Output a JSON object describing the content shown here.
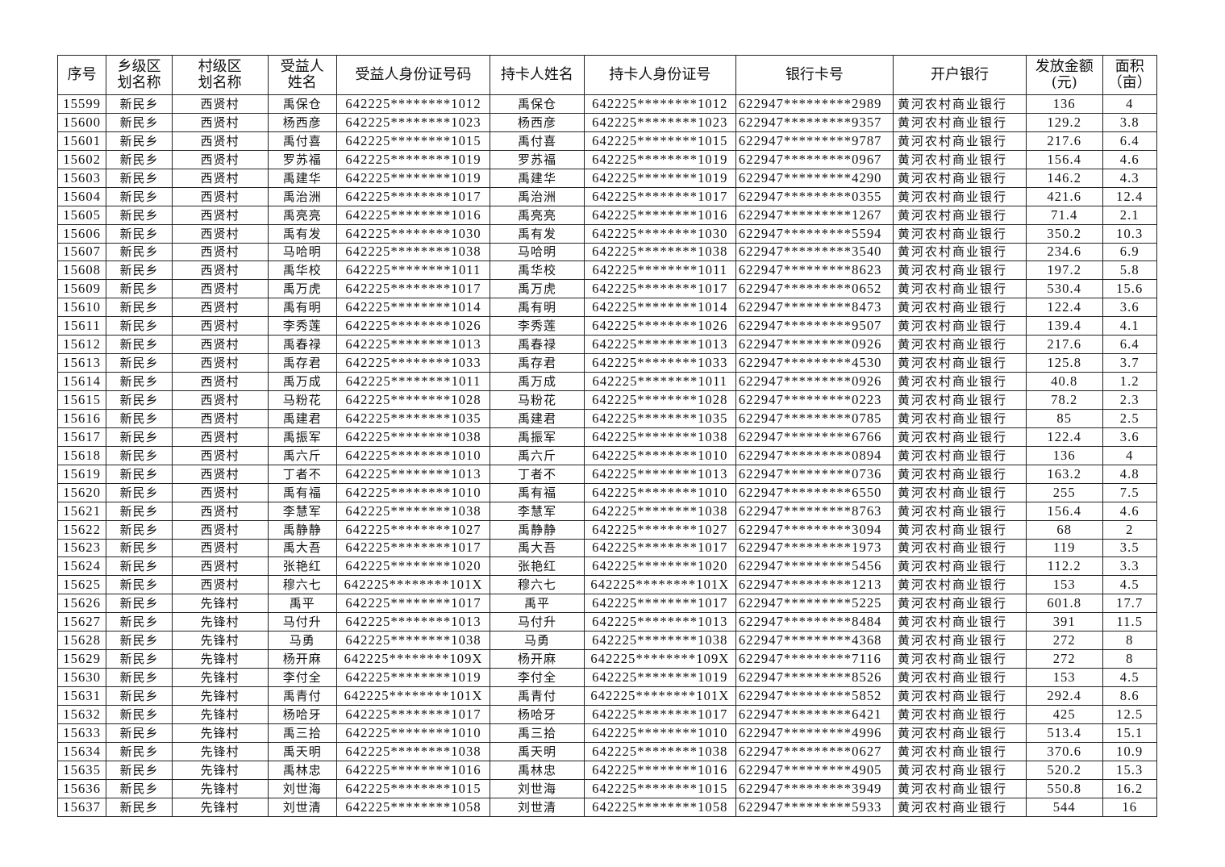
{
  "headers": [
    "序号",
    "乡级区\n划名称",
    "村级区\n划名称",
    "受益人\n姓名",
    "受益人身份证号码",
    "持卡人姓名",
    "持卡人身份证号",
    "银行卡号",
    "开户银行",
    "发放金额\n(元)",
    "面积\n（亩）"
  ],
  "rows": [
    [
      "15599",
      "新民乡",
      "西贤村",
      "禹保仓",
      "642225********1012",
      "禹保仓",
      "642225********1012",
      "622947*********2989",
      "黄河农村商业银行",
      "136",
      "4"
    ],
    [
      "15600",
      "新民乡",
      "西贤村",
      "杨西彦",
      "642225********1023",
      "杨西彦",
      "642225********1023",
      "622947*********9357",
      "黄河农村商业银行",
      "129.2",
      "3.8"
    ],
    [
      "15601",
      "新民乡",
      "西贤村",
      "禹付喜",
      "642225********1015",
      "禹付喜",
      "642225********1015",
      "622947*********9787",
      "黄河农村商业银行",
      "217.6",
      "6.4"
    ],
    [
      "15602",
      "新民乡",
      "西贤村",
      "罗苏福",
      "642225********1019",
      "罗苏福",
      "642225********1019",
      "622947*********0967",
      "黄河农村商业银行",
      "156.4",
      "4.6"
    ],
    [
      "15603",
      "新民乡",
      "西贤村",
      "禹建华",
      "642225********1019",
      "禹建华",
      "642225********1019",
      "622947*********4290",
      "黄河农村商业银行",
      "146.2",
      "4.3"
    ],
    [
      "15604",
      "新民乡",
      "西贤村",
      "禹治洲",
      "642225********1017",
      "禹治洲",
      "642225********1017",
      "622947*********0355",
      "黄河农村商业银行",
      "421.6",
      "12.4"
    ],
    [
      "15605",
      "新民乡",
      "西贤村",
      "禹亮亮",
      "642225********1016",
      "禹亮亮",
      "642225********1016",
      "622947*********1267",
      "黄河农村商业银行",
      "71.4",
      "2.1"
    ],
    [
      "15606",
      "新民乡",
      "西贤村",
      "禹有发",
      "642225********1030",
      "禹有发",
      "642225********1030",
      "622947*********5594",
      "黄河农村商业银行",
      "350.2",
      "10.3"
    ],
    [
      "15607",
      "新民乡",
      "西贤村",
      "马哈明",
      "642225********1038",
      "马哈明",
      "642225********1038",
      "622947*********3540",
      "黄河农村商业银行",
      "234.6",
      "6.9"
    ],
    [
      "15608",
      "新民乡",
      "西贤村",
      "禹华校",
      "642225********1011",
      "禹华校",
      "642225********1011",
      "622947*********8623",
      "黄河农村商业银行",
      "197.2",
      "5.8"
    ],
    [
      "15609",
      "新民乡",
      "西贤村",
      "禹万虎",
      "642225********1017",
      "禹万虎",
      "642225********1017",
      "622947*********0652",
      "黄河农村商业银行",
      "530.4",
      "15.6"
    ],
    [
      "15610",
      "新民乡",
      "西贤村",
      "禹有明",
      "642225********1014",
      "禹有明",
      "642225********1014",
      "622947*********8473",
      "黄河农村商业银行",
      "122.4",
      "3.6"
    ],
    [
      "15611",
      "新民乡",
      "西贤村",
      "李秀莲",
      "642225********1026",
      "李秀莲",
      "642225********1026",
      "622947*********9507",
      "黄河农村商业银行",
      "139.4",
      "4.1"
    ],
    [
      "15612",
      "新民乡",
      "西贤村",
      "禹春禄",
      "642225********1013",
      "禹春禄",
      "642225********1013",
      "622947*********0926",
      "黄河农村商业银行",
      "217.6",
      "6.4"
    ],
    [
      "15613",
      "新民乡",
      "西贤村",
      "禹存君",
      "642225********1033",
      "禹存君",
      "642225********1033",
      "622947*********4530",
      "黄河农村商业银行",
      "125.8",
      "3.7"
    ],
    [
      "15614",
      "新民乡",
      "西贤村",
      "禹万成",
      "642225********1011",
      "禹万成",
      "642225********1011",
      "622947*********0926",
      "黄河农村商业银行",
      "40.8",
      "1.2"
    ],
    [
      "15615",
      "新民乡",
      "西贤村",
      "马粉花",
      "642225********1028",
      "马粉花",
      "642225********1028",
      "622947*********0223",
      "黄河农村商业银行",
      "78.2",
      "2.3"
    ],
    [
      "15616",
      "新民乡",
      "西贤村",
      "禹建君",
      "642225********1035",
      "禹建君",
      "642225********1035",
      "622947*********0785",
      "黄河农村商业银行",
      "85",
      "2.5"
    ],
    [
      "15617",
      "新民乡",
      "西贤村",
      "禹振军",
      "642225********1038",
      "禹振军",
      "642225********1038",
      "622947*********6766",
      "黄河农村商业银行",
      "122.4",
      "3.6"
    ],
    [
      "15618",
      "新民乡",
      "西贤村",
      "禹六斤",
      "642225********1010",
      "禹六斤",
      "642225********1010",
      "622947*********0894",
      "黄河农村商业银行",
      "136",
      "4"
    ],
    [
      "15619",
      "新民乡",
      "西贤村",
      "丁者不",
      "642225********1013",
      "丁者不",
      "642225********1013",
      "622947*********0736",
      "黄河农村商业银行",
      "163.2",
      "4.8"
    ],
    [
      "15620",
      "新民乡",
      "西贤村",
      "禹有福",
      "642225********1010",
      "禹有福",
      "642225********1010",
      "622947*********6550",
      "黄河农村商业银行",
      "255",
      "7.5"
    ],
    [
      "15621",
      "新民乡",
      "西贤村",
      "李慧军",
      "642225********1038",
      "李慧军",
      "642225********1038",
      "622947*********8763",
      "黄河农村商业银行",
      "156.4",
      "4.6"
    ],
    [
      "15622",
      "新民乡",
      "西贤村",
      "禹静静",
      "642225********1027",
      "禹静静",
      "642225********1027",
      "622947*********3094",
      "黄河农村商业银行",
      "68",
      "2"
    ],
    [
      "15623",
      "新民乡",
      "西贤村",
      "禹大吾",
      "642225********1017",
      "禹大吾",
      "642225********1017",
      "622947*********1973",
      "黄河农村商业银行",
      "119",
      "3.5"
    ],
    [
      "15624",
      "新民乡",
      "西贤村",
      "张艳红",
      "642225********1020",
      "张艳红",
      "642225********1020",
      "622947*********5456",
      "黄河农村商业银行",
      "112.2",
      "3.3"
    ],
    [
      "15625",
      "新民乡",
      "西贤村",
      "穆六七",
      "642225********101X",
      "穆六七",
      "642225********101X",
      "622947*********1213",
      "黄河农村商业银行",
      "153",
      "4.5"
    ],
    [
      "15626",
      "新民乡",
      "先锋村",
      "禹平",
      "642225********1017",
      "禹平",
      "642225********1017",
      "622947*********5225",
      "黄河农村商业银行",
      "601.8",
      "17.7"
    ],
    [
      "15627",
      "新民乡",
      "先锋村",
      "马付升",
      "642225********1013",
      "马付升",
      "642225********1013",
      "622947*********8484",
      "黄河农村商业银行",
      "391",
      "11.5"
    ],
    [
      "15628",
      "新民乡",
      "先锋村",
      "马勇",
      "642225********1038",
      "马勇",
      "642225********1038",
      "622947*********4368",
      "黄河农村商业银行",
      "272",
      "8"
    ],
    [
      "15629",
      "新民乡",
      "先锋村",
      "杨开麻",
      "642225********109X",
      "杨开麻",
      "642225********109X",
      "622947*********7116",
      "黄河农村商业银行",
      "272",
      "8"
    ],
    [
      "15630",
      "新民乡",
      "先锋村",
      "李付全",
      "642225********1019",
      "李付全",
      "642225********1019",
      "622947*********8526",
      "黄河农村商业银行",
      "153",
      "4.5"
    ],
    [
      "15631",
      "新民乡",
      "先锋村",
      "禹青付",
      "642225********101X",
      "禹青付",
      "642225********101X",
      "622947*********5852",
      "黄河农村商业银行",
      "292.4",
      "8.6"
    ],
    [
      "15632",
      "新民乡",
      "先锋村",
      "杨哈牙",
      "642225********1017",
      "杨哈牙",
      "642225********1017",
      "622947*********6421",
      "黄河农村商业银行",
      "425",
      "12.5"
    ],
    [
      "15633",
      "新民乡",
      "先锋村",
      "禹三拾",
      "642225********1010",
      "禹三拾",
      "642225********1010",
      "622947*********4996",
      "黄河农村商业银行",
      "513.4",
      "15.1"
    ],
    [
      "15634",
      "新民乡",
      "先锋村",
      "禹天明",
      "642225********1038",
      "禹天明",
      "642225********1038",
      "622947*********0627",
      "黄河农村商业银行",
      "370.6",
      "10.9"
    ],
    [
      "15635",
      "新民乡",
      "先锋村",
      "禹林忠",
      "642225********1016",
      "禹林忠",
      "642225********1016",
      "622947*********4905",
      "黄河农村商业银行",
      "520.2",
      "15.3"
    ],
    [
      "15636",
      "新民乡",
      "先锋村",
      "刘世海",
      "642225********1015",
      "刘世海",
      "642225********1015",
      "622947*********3949",
      "黄河农村商业银行",
      "550.8",
      "16.2"
    ],
    [
      "15637",
      "新民乡",
      "先锋村",
      "刘世清",
      "642225********1058",
      "刘世清",
      "642225********1058",
      "622947*********5933",
      "黄河农村商业银行",
      "544",
      "16"
    ]
  ]
}
